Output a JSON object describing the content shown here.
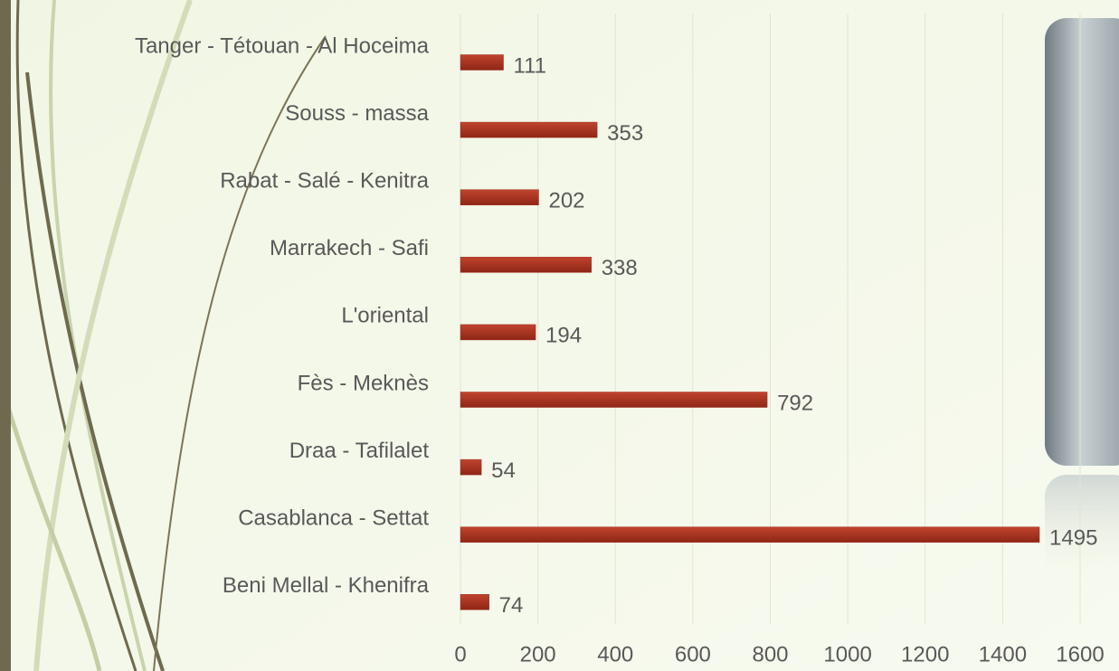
{
  "chart_data": {
    "type": "bar",
    "orientation": "horizontal",
    "categories": [
      "Tanger - Tétouan - Al Hoceima",
      "Souss - massa",
      "Rabat - Salé - Kenitra",
      "Marrakech - Safi",
      "L'oriental",
      "Fès - Meknès",
      "Draa - Tafilalet",
      "Casablanca - Settat",
      "Beni Mellal - Khenifra"
    ],
    "values": [
      111,
      353,
      202,
      338,
      194,
      792,
      54,
      1495,
      74
    ],
    "color": "#a3301f",
    "xlim": [
      0,
      1600
    ],
    "xticks": [
      0,
      200,
      400,
      600,
      800,
      1000,
      1200,
      1400,
      1600
    ],
    "grid": true
  }
}
